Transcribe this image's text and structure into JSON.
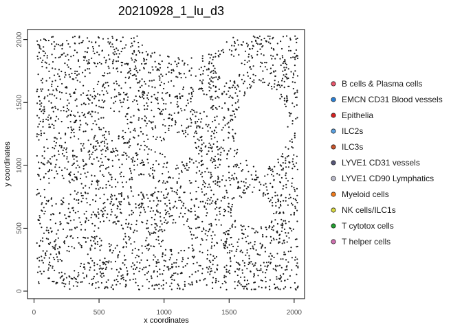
{
  "chart_data": {
    "type": "scatter",
    "title": "20210928_1_lu_d3",
    "xlabel": "x coordinates",
    "ylabel": "y coordinates",
    "xlim": [
      -50,
      2080
    ],
    "ylim": [
      -60,
      2080
    ],
    "x_ticks": [
      0,
      500,
      1000,
      1500,
      2000
    ],
    "y_ticks": [
      0,
      500,
      1000,
      1500,
      2000
    ],
    "x_tick_labels": [
      "0",
      "500",
      "1000",
      "1500",
      "2000"
    ],
    "y_tick_labels": [
      "0",
      "500",
      "1000",
      "1500",
      "2000"
    ],
    "grid": false,
    "legend_position": "right",
    "point_style": "small dark filled points, approximately 3500 cells spread over the whole field",
    "series": [
      {
        "name": "B cells & Plasma cells",
        "color": "#e8556b"
      },
      {
        "name": "EMCN CD31 Blood vessels",
        "color": "#2a7fd4"
      },
      {
        "name": "Epithelia",
        "color": "#d62020"
      },
      {
        "name": "ILC2s",
        "color": "#5aa0e0"
      },
      {
        "name": "ILC3s",
        "color": "#c8542a"
      },
      {
        "name": "LYVE1 CD31 vessels",
        "color": "#555577"
      },
      {
        "name": "LYVE1 CD90 Lymphatics",
        "color": "#b8b8c8"
      },
      {
        "name": "Myeloid cells",
        "color": "#f07a1a"
      },
      {
        "name": "NK cells/ILC1s",
        "color": "#d8d840"
      },
      {
        "name": "T cytotox cells",
        "color": "#22a030"
      },
      {
        "name": "T helper cells",
        "color": "#d070b0"
      }
    ],
    "empty_regions": [
      {
        "cx": 1750,
        "cy": 1300,
        "rx": 200,
        "ry": 320
      },
      {
        "cx": 1150,
        "cy": 2000,
        "rx": 330,
        "ry": 140
      },
      {
        "cx": 1100,
        "cy": 1130,
        "rx": 110,
        "ry": 110
      },
      {
        "cx": 1680,
        "cy": 640,
        "rx": 150,
        "ry": 120
      },
      {
        "cx": 1100,
        "cy": 430,
        "rx": 110,
        "ry": 110
      },
      {
        "cx": 200,
        "cy": 820,
        "rx": 90,
        "ry": 80
      },
      {
        "cx": 860,
        "cy": 850,
        "rx": 80,
        "ry": 70
      },
      {
        "cx": 620,
        "cy": 1350,
        "rx": 90,
        "ry": 80
      },
      {
        "cx": 600,
        "cy": 450,
        "rx": 100,
        "ry": 70
      },
      {
        "cx": 1500,
        "cy": 1780,
        "rx": 100,
        "ry": 90
      },
      {
        "cx": 280,
        "cy": 220,
        "rx": 70,
        "ry": 60
      },
      {
        "cx": 1280,
        "cy": 1500,
        "rx": 70,
        "ry": 70
      }
    ]
  }
}
